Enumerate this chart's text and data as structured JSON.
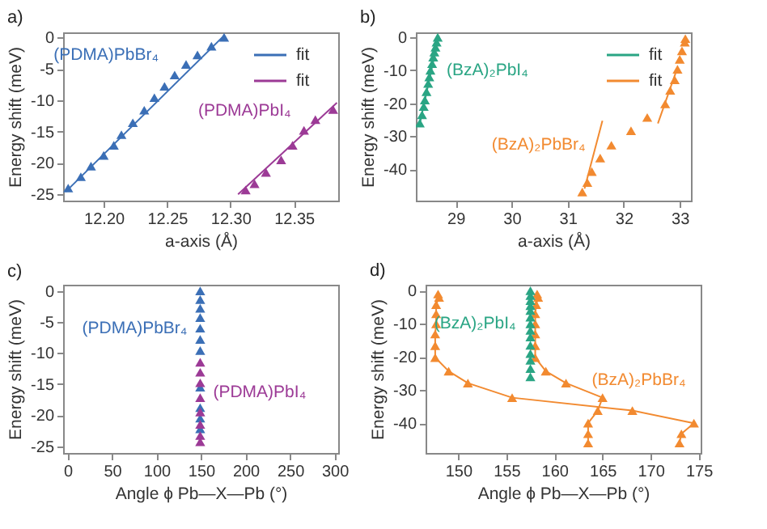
{
  "chart_data": [
    {
      "type": "scatter",
      "title": "a)",
      "xlabel": "a-axis (Å)",
      "ylabel": "Energy shift (meV)",
      "xlim": [
        12.168,
        12.385
      ],
      "ylim": [
        -26,
        0.8
      ],
      "xticks": [
        {
          "value": 12.2,
          "label": "12.20"
        },
        12.25,
        {
          "value": 12.3,
          "label": "12.30"
        },
        12.35
      ],
      "yticks": [
        0,
        -5,
        -10,
        -15,
        -20,
        -25
      ],
      "legend": "top right",
      "series": [
        {
          "name": "(PDMA)PbBr₄",
          "marker": "triangle",
          "color": "#3b6fb6",
          "x": [
            12.172,
            12.182,
            12.19,
            12.2,
            12.208,
            12.214,
            12.223,
            12.232,
            12.24,
            12.248,
            12.256,
            12.265,
            12.274,
            12.285,
            12.295
          ],
          "values": [
            -24,
            -22.2,
            -20.5,
            -18.8,
            -17.2,
            -15.5,
            -13.6,
            -11.6,
            -9.6,
            -7.8,
            -6,
            -4.3,
            -2.8,
            -1.4,
            0
          ]
        },
        {
          "name": "(PDMA)PbI₄",
          "marker": "triangle",
          "color": "#9c3a96",
          "x": [
            12.312,
            12.319,
            12.328,
            12.34,
            12.349,
            12.358,
            12.367,
            12.381
          ],
          "values": [
            -24.3,
            -23.3,
            -21.5,
            -19.5,
            -17.2,
            -14.8,
            -13.1,
            -11.5
          ]
        },
        {
          "type": "line",
          "name": "fit",
          "color": "#3b6fb6",
          "x": [
            12.17,
            12.295
          ],
          "values": [
            -24.6,
            0.3
          ]
        },
        {
          "type": "line",
          "name": "fit",
          "color": "#9c3a96",
          "x": [
            12.306,
            12.384
          ],
          "values": [
            -25,
            -10.4
          ]
        }
      ]
    },
    {
      "type": "scatter",
      "title": "b)",
      "xlabel": "a-axis (Å)",
      "ylabel": "Energy shift (meV)",
      "xlim": [
        28.29,
        33.2
      ],
      "ylim": [
        -49.5,
        1.5
      ],
      "xticks": [
        29,
        30,
        31,
        32,
        33
      ],
      "yticks": [
        0,
        -10,
        -20,
        -30,
        -40
      ],
      "legend": "top right",
      "series": [
        {
          "name": "(BzA)₂PbI₄",
          "marker": "triangle",
          "color": "#2aa584",
          "x": [
            28.36,
            28.4,
            28.43,
            28.45,
            28.48,
            28.51,
            28.53,
            28.55,
            28.58,
            28.6,
            28.62,
            28.64,
            28.66,
            28.68
          ],
          "values": [
            -26,
            -23.5,
            -21,
            -19,
            -16.5,
            -14,
            -12,
            -10,
            -8,
            -6,
            -4.5,
            -3,
            -1.5,
            0
          ]
        },
        {
          "name": "(BzA)₂PbBr₄",
          "marker": "triangle",
          "color": "#f28a30",
          "x": [
            31.26,
            31.35,
            31.43,
            31.58,
            31.78,
            32.13,
            32.42,
            32.74,
            32.83,
            32.91,
            32.96,
            33,
            33.04,
            33.09,
            33.1
          ],
          "values": [
            -46.9,
            -44,
            -40.7,
            -36.6,
            -32.7,
            -28.3,
            -24.3,
            -20.2,
            -16.1,
            -12.9,
            -9.7,
            -6.7,
            -4.1,
            -1.5,
            -0.4
          ]
        },
        {
          "type": "line",
          "name": "fit",
          "color": "#2aa584",
          "x": [
            28.35,
            28.7
          ],
          "values": [
            -27,
            0.5
          ]
        },
        {
          "type": "line",
          "name": "fit",
          "color": "#f28a30",
          "x": [
            31.3,
            31.62,
            32,
            32.61,
            32.96
          ],
          "values": [
            -45.9,
            -25.3,
            null,
            -26.1,
            -9.2
          ]
        }
      ]
    },
    {
      "type": "scatter",
      "title": "c)",
      "xlabel": "Angle ϕ Pb—X—Pb (°)",
      "ylabel": "Energy shift (meV)",
      "xlim": [
        -5,
        304
      ],
      "ylim": [
        -26.1,
        1
      ],
      "xticks": [
        0,
        50,
        100,
        150,
        200,
        250,
        300
      ],
      "yticks": [
        0,
        -5,
        -10,
        -15,
        -20,
        -25
      ],
      "series": [
        {
          "name": "(PDMA)PbBr₄",
          "marker": "triangle",
          "color": "#3b6fb6",
          "x": [
            null,
            149,
            149,
            149,
            null,
            149,
            null,
            null,
            149,
            149,
            149,
            149,
            149,
            149,
            149
          ],
          "values": [
            null,
            -22.2,
            -20.5,
            -18.8,
            null,
            -15.5,
            null,
            null,
            -9.6,
            -7.8,
            -6,
            -4.3,
            -2.8,
            -1.4,
            0
          ]
        },
        {
          "name": "(PDMA)PbI₄",
          "marker": "triangle",
          "color": "#9c3a96",
          "x": [
            149,
            149,
            149,
            149,
            149,
            149,
            149,
            149
          ],
          "values": [
            -24.3,
            -23.3,
            -21.5,
            -19.5,
            -17.2,
            -14.8,
            -13.1,
            -11.5
          ]
        }
      ]
    },
    {
      "type": "scatter",
      "title": "d)",
      "xlabel": "Angle ϕ Pb—X—Pb (°)",
      "ylabel": "Energy shift (meV)",
      "xlim": [
        146.6,
        175.2
      ],
      "ylim": [
        -49,
        1.8
      ],
      "xticks": [
        150,
        155,
        160,
        165,
        170,
        175
      ],
      "yticks": [
        0,
        -10,
        -20,
        -30,
        -40
      ],
      "series": [
        {
          "type": "line",
          "name": "(BzA)₂PbBr₄",
          "marker": "triangle",
          "color": "#f28a30",
          "x": [
            158.2,
            158.3,
            158.1,
            158,
            158,
            158,
            158,
            158,
            159.1,
            161.2,
            165,
            164.5,
            163.5,
            163.5,
            163.5
          ],
          "values": [
            -1,
            -2,
            -4.2,
            -7,
            -10,
            -13.1,
            -16.6,
            -20.2,
            -24.3,
            -27.9,
            -32.3,
            -36.2,
            -40,
            -43.2,
            -46
          ]
        },
        {
          "type": "line",
          "marker": "triangle",
          "color": "#f28a30",
          "x": [
            147.9,
            148,
            147.7,
            147.7,
            147.7,
            147.6,
            147.6,
            147.6,
            149,
            151,
            155.6,
            168.1,
            174.5,
            173.2,
            173
          ],
          "values": [
            -1,
            -2,
            -4.2,
            -7,
            -10,
            -13.1,
            -16.6,
            -20.2,
            -24.3,
            -27.9,
            -32.3,
            -36.2,
            -40,
            -43.2,
            -46
          ]
        },
        {
          "name": "(BzA)₂PbI₄",
          "marker": "triangle",
          "color": "#2aa584",
          "x": [
            157.5,
            157.5,
            157.5,
            157.5,
            157.5,
            157.5,
            157.5,
            157.5,
            157.5,
            157.5,
            157.5,
            157.5,
            157.5,
            157.5
          ],
          "values": [
            -26,
            -23.5,
            -21,
            -19,
            -16.5,
            -14,
            -12,
            -10,
            -8,
            -6,
            -4.5,
            -3,
            -1.5,
            0
          ]
        }
      ]
    }
  ]
}
